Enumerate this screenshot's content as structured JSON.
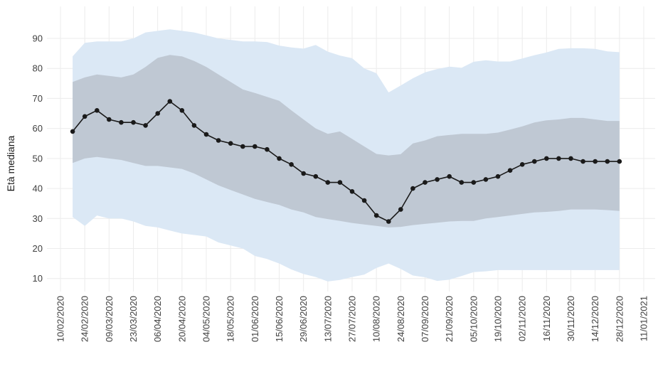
{
  "chart_data": {
    "type": "line",
    "title": "",
    "xlabel": "",
    "ylabel": "Età mediana",
    "grid": true,
    "legend": "none",
    "ylim": [
      5,
      95
    ],
    "y_ticks": [
      10,
      20,
      30,
      40,
      50,
      60,
      70,
      80,
      90
    ],
    "x_tick_labels": [
      "10/02/2020",
      "24/02/2020",
      "09/03/2020",
      "23/03/2020",
      "06/04/2020",
      "20/04/2020",
      "04/05/2020",
      "18/05/2020",
      "01/06/2020",
      "15/06/2020",
      "29/06/2020",
      "13/07/2020",
      "27/07/2020",
      "10/08/2020",
      "24/08/2020",
      "07/09/2020",
      "21/09/2020",
      "05/10/2020",
      "19/10/2020",
      "02/11/2020",
      "16/11/2020",
      "30/11/2020",
      "14/12/2020",
      "28/12/2020",
      "11/01/2021"
    ],
    "x_axis_start_label": "10/02/2020",
    "x_axis_end_label": "11/01/2021",
    "weeks_between_ticks": 2,
    "data_start_week_offset": 1,
    "x": [
      "17/02/2020",
      "24/02/2020",
      "02/03/2020",
      "09/03/2020",
      "16/03/2020",
      "23/03/2020",
      "30/03/2020",
      "06/04/2020",
      "13/04/2020",
      "20/04/2020",
      "27/04/2020",
      "04/05/2020",
      "11/05/2020",
      "18/05/2020",
      "25/05/2020",
      "01/06/2020",
      "08/06/2020",
      "15/06/2020",
      "22/06/2020",
      "29/06/2020",
      "06/07/2020",
      "13/07/2020",
      "20/07/2020",
      "27/07/2020",
      "03/08/2020",
      "10/08/2020",
      "17/08/2020",
      "24/08/2020",
      "31/08/2020",
      "07/09/2020",
      "14/09/2020",
      "21/09/2020",
      "28/09/2020",
      "05/10/2020",
      "12/10/2020",
      "19/10/2020",
      "26/10/2020",
      "02/11/2020",
      "09/11/2020",
      "16/11/2020",
      "23/11/2020",
      "30/11/2020",
      "07/12/2020",
      "14/12/2020",
      "21/12/2020",
      "28/12/2020"
    ],
    "series": [
      {
        "name": "Età mediana",
        "color": "#1a1a1a",
        "marker": "circle",
        "values": [
          59,
          64,
          66,
          63,
          62,
          62,
          61,
          65,
          69,
          66,
          61,
          58,
          56,
          55,
          54,
          54,
          53,
          50,
          48,
          45,
          44,
          42,
          42,
          39,
          36,
          31,
          29,
          33,
          40,
          42,
          43,
          44,
          42,
          42,
          43,
          44,
          46,
          48,
          49,
          50,
          50,
          50,
          49,
          49,
          49,
          49
        ]
      }
    ],
    "bands": [
      {
        "name": "outer-percentile-band",
        "color": "#dbe8f5",
        "upper": [
          84,
          88.5,
          89,
          89,
          89,
          90,
          92,
          92.5,
          93,
          92.5,
          92,
          91,
          90,
          89.5,
          89,
          89,
          88.8,
          87.6,
          87,
          86.6,
          87.8,
          85.6,
          84.3,
          83.4,
          80,
          78.4,
          72,
          74.3,
          76.7,
          78.7,
          79.8,
          80.6,
          80.2,
          82.2,
          82.7,
          82.3,
          82.3,
          83.3,
          84.4,
          85.3,
          86.5,
          86.7,
          86.7,
          86.5,
          85.7,
          85.4
        ],
        "lower": [
          30.5,
          27.5,
          31,
          30,
          30,
          29,
          27.5,
          27,
          26,
          25,
          24.5,
          24,
          22,
          21,
          20,
          17.5,
          16.5,
          15,
          13,
          11.5,
          10.5,
          9,
          9.5,
          10.5,
          11.3,
          13.5,
          15,
          13.2,
          11,
          10.4,
          9.2,
          9.6,
          10.8,
          12.1,
          12.4,
          12.8,
          12.8,
          12.8,
          12.8,
          12.8,
          12.8,
          12.8,
          12.8,
          12.8,
          12.8,
          12.8
        ]
      },
      {
        "name": "interquartile-band",
        "color": "#bfc8d3",
        "upper": [
          75.5,
          77,
          78,
          77.5,
          77,
          78,
          80.5,
          83.5,
          84.5,
          84,
          82.5,
          80.5,
          78,
          75.5,
          73,
          71.8,
          70.5,
          69.2,
          66,
          63,
          60,
          58.2,
          59,
          56.5,
          54,
          51.5,
          51,
          51.4,
          55,
          56,
          57.4,
          57.8,
          58.2,
          58.2,
          58.2,
          58.6,
          59.6,
          60.7,
          62,
          62.7,
          63,
          63.5,
          63.5,
          63,
          62.5,
          62.5
        ],
        "lower": [
          48.5,
          50,
          50.5,
          50,
          49.5,
          48.5,
          47.5,
          47.5,
          47,
          46.5,
          45,
          43,
          41,
          39.5,
          38,
          36.5,
          35.5,
          34.5,
          33,
          32,
          30.5,
          29.8,
          29.2,
          28.5,
          28,
          27.5,
          27,
          27.2,
          27.8,
          28.2,
          28.6,
          29,
          29.2,
          29.2,
          30,
          30.5,
          31,
          31.5,
          32,
          32.2,
          32.5,
          33,
          33,
          33,
          32.8,
          32.5
        ]
      }
    ],
    "colors": {
      "background": "#ffffff",
      "gridline": "#ececec",
      "tick_label": "#404040",
      "line": "#1a1a1a"
    }
  }
}
